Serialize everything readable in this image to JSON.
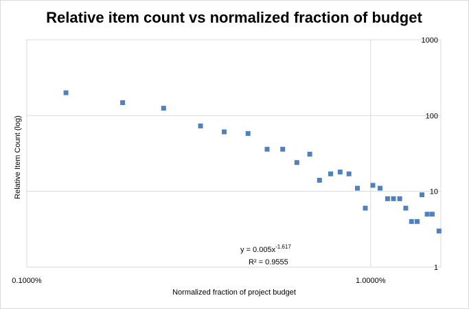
{
  "chart_data": {
    "type": "scatter",
    "title": "Relative item count vs normalized fraction of budget",
    "xlabel": "Normalized fraction of project budget",
    "ylabel": "Relative Item Count (log)",
    "x_scale": "log",
    "y_scale": "log",
    "xlim": [
      0.1,
      1.6
    ],
    "ylim": [
      1,
      1000
    ],
    "x_ticks": [
      {
        "value": 0.1,
        "label": "0.1000%"
      },
      {
        "value": 1.0,
        "label": "1.0000%"
      }
    ],
    "y_ticks": [
      {
        "value": 1,
        "label": "1"
      },
      {
        "value": 10,
        "label": "10"
      },
      {
        "value": 100,
        "label": "100"
      },
      {
        "value": 1000,
        "label": "1000"
      }
    ],
    "grid": true,
    "legend": "none",
    "marker_color": "#4f81bd",
    "trendline_color": "#4f81bd",
    "series": [
      {
        "points": [
          {
            "x": 0.13,
            "y": 200
          },
          {
            "x": 0.19,
            "y": 148
          },
          {
            "x": 0.25,
            "y": 125
          },
          {
            "x": 0.32,
            "y": 73
          },
          {
            "x": 0.375,
            "y": 61
          },
          {
            "x": 0.44,
            "y": 58
          },
          {
            "x": 0.5,
            "y": 36
          },
          {
            "x": 0.555,
            "y": 36
          },
          {
            "x": 0.61,
            "y": 24
          },
          {
            "x": 0.665,
            "y": 31
          },
          {
            "x": 0.71,
            "y": 14
          },
          {
            "x": 0.765,
            "y": 17
          },
          {
            "x": 0.815,
            "y": 18
          },
          {
            "x": 0.865,
            "y": 17
          },
          {
            "x": 0.915,
            "y": 11
          },
          {
            "x": 0.965,
            "y": 6
          },
          {
            "x": 1.015,
            "y": 12
          },
          {
            "x": 1.065,
            "y": 11
          },
          {
            "x": 1.12,
            "y": 8
          },
          {
            "x": 1.165,
            "y": 8
          },
          {
            "x": 1.215,
            "y": 8
          },
          {
            "x": 1.265,
            "y": 6
          },
          {
            "x": 1.315,
            "y": 4
          },
          {
            "x": 1.365,
            "y": 4
          },
          {
            "x": 1.41,
            "y": 9
          },
          {
            "x": 1.46,
            "y": 5
          },
          {
            "x": 1.51,
            "y": 5
          },
          {
            "x": 1.58,
            "y": 3
          }
        ]
      }
    ],
    "trendline": {
      "type": "power",
      "style": "dotted",
      "coefficient": 0.005,
      "exponent": -1.617,
      "equation_prefix": "y = 0.005x",
      "equation_exponent": "-1.617",
      "r_squared_label": "R² = 0.9555"
    }
  }
}
